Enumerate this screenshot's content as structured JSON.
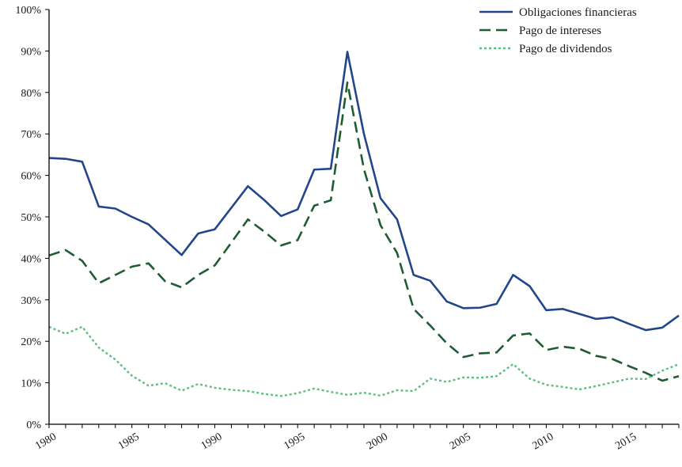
{
  "chart_data": {
    "type": "line",
    "title": "",
    "xlabel": "",
    "ylabel": "",
    "ylim": [
      0,
      100
    ],
    "xlim": [
      1980,
      2018
    ],
    "y_ticks": [
      "0%",
      "10%",
      "20%",
      "30%",
      "40%",
      "50%",
      "60%",
      "70%",
      "80%",
      "90%",
      "100%"
    ],
    "x_ticks": [
      "1980",
      "1985",
      "1990",
      "1995",
      "2000",
      "2005",
      "2010",
      "2015"
    ],
    "grid": false,
    "legend_position": "top-right",
    "x": [
      1980,
      1981,
      1982,
      1983,
      1984,
      1985,
      1986,
      1987,
      1988,
      1989,
      1990,
      1991,
      1992,
      1993,
      1994,
      1995,
      1996,
      1997,
      1998,
      1999,
      2000,
      2001,
      2002,
      2003,
      2004,
      2005,
      2006,
      2007,
      2008,
      2009,
      2010,
      2011,
      2012,
      2013,
      2014,
      2015,
      2016,
      2017,
      2018
    ],
    "series": [
      {
        "name": "Obligaciones financieras",
        "color": "#23468a",
        "style": "solid",
        "values": [
          64.2,
          64.0,
          63.3,
          52.5,
          52.0,
          50.0,
          48.2,
          44.5,
          40.8,
          46.0,
          47.0,
          52.2,
          57.4,
          54.0,
          50.2,
          51.8,
          61.4,
          61.6,
          89.8,
          70.0,
          54.5,
          49.4,
          36.0,
          34.6,
          29.6,
          28.0,
          28.1,
          29.0,
          36.0,
          33.3,
          27.5,
          27.8,
          26.6,
          25.4,
          25.8,
          24.2,
          22.7,
          23.3,
          26.2
        ]
      },
      {
        "name": "Pago de intereses",
        "color": "#1f5c33",
        "style": "dashed",
        "values": [
          40.7,
          42.0,
          39.4,
          34.0,
          36.0,
          38.0,
          38.8,
          34.5,
          33.0,
          36.0,
          38.3,
          43.8,
          49.4,
          46.4,
          43.1,
          44.4,
          52.7,
          54.0,
          82.4,
          61.5,
          48.0,
          41.3,
          27.8,
          23.8,
          19.5,
          16.2,
          17.1,
          17.3,
          21.4,
          21.9,
          17.9,
          18.7,
          18.2,
          16.5,
          15.7,
          14.0,
          12.4,
          10.5,
          11.6
        ]
      },
      {
        "name": "Pago de dividendos",
        "color": "#5fbf7f",
        "style": "dotted",
        "values": [
          23.5,
          21.8,
          23.5,
          18.5,
          15.6,
          11.7,
          9.3,
          9.9,
          8.1,
          9.7,
          8.8,
          8.3,
          8.0,
          7.3,
          6.8,
          7.5,
          8.6,
          7.8,
          7.1,
          7.6,
          6.9,
          8.2,
          8.0,
          11.0,
          10.2,
          11.3,
          11.2,
          11.6,
          14.5,
          11.0,
          9.5,
          9.0,
          8.4,
          9.2,
          10.1,
          11.0,
          10.9,
          12.9,
          14.5
        ]
      }
    ]
  }
}
